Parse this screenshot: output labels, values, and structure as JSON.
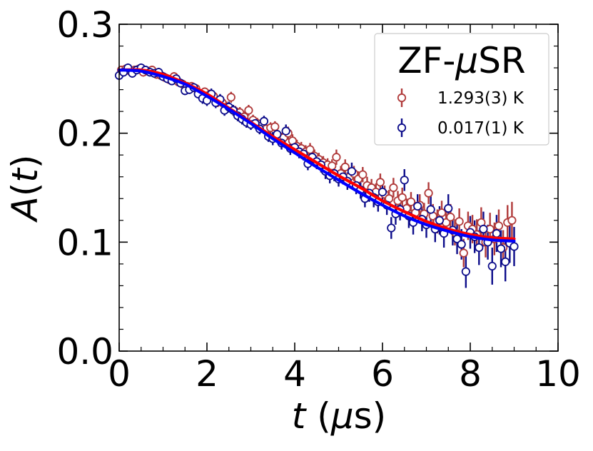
{
  "chart_data": {
    "type": "scatter",
    "xlabel": "t (μs)",
    "ylabel": "A(t)",
    "xlim": [
      0,
      10
    ],
    "ylim": [
      0.0,
      0.3
    ],
    "xticks": [
      "0",
      "2",
      "4",
      "6",
      "8",
      "10"
    ],
    "yticks": [
      "0.0",
      "0.1",
      "0.2",
      "0.3"
    ],
    "legend": {
      "title": "ZF-μSR",
      "position": "top-right",
      "entries": [
        {
          "label": "1.293(3) K",
          "color": "#b03a3a"
        },
        {
          "label": "0.017(1) K",
          "color": "#0c0c8a"
        }
      ]
    },
    "series": [
      {
        "name": "1.293(3) K",
        "marker": "open-circle",
        "color": "#b03a3a",
        "points": [
          [
            0.05,
            0.258,
            0.004
          ],
          [
            0.15,
            0.259,
            0.004
          ],
          [
            0.25,
            0.257,
            0.004
          ],
          [
            0.35,
            0.258,
            0.004
          ],
          [
            0.45,
            0.259,
            0.004
          ],
          [
            0.55,
            0.256,
            0.004
          ],
          [
            0.65,
            0.257,
            0.004
          ],
          [
            0.75,
            0.258,
            0.004
          ],
          [
            0.85,
            0.254,
            0.004
          ],
          [
            0.95,
            0.253,
            0.004
          ],
          [
            1.05,
            0.251,
            0.004
          ],
          [
            1.15,
            0.249,
            0.004
          ],
          [
            1.25,
            0.252,
            0.004
          ],
          [
            1.35,
            0.247,
            0.004
          ],
          [
            1.45,
            0.245,
            0.004
          ],
          [
            1.55,
            0.243,
            0.004
          ],
          [
            1.65,
            0.243,
            0.004
          ],
          [
            1.75,
            0.241,
            0.004
          ],
          [
            1.85,
            0.236,
            0.004
          ],
          [
            1.95,
            0.238,
            0.004
          ],
          [
            2.05,
            0.235,
            0.005
          ],
          [
            2.15,
            0.234,
            0.005
          ],
          [
            2.25,
            0.229,
            0.005
          ],
          [
            2.35,
            0.228,
            0.005
          ],
          [
            2.45,
            0.224,
            0.005
          ],
          [
            2.55,
            0.233,
            0.005
          ],
          [
            2.65,
            0.22,
            0.005
          ],
          [
            2.75,
            0.219,
            0.005
          ],
          [
            2.85,
            0.215,
            0.005
          ],
          [
            2.95,
            0.221,
            0.005
          ],
          [
            3.05,
            0.212,
            0.005
          ],
          [
            3.15,
            0.209,
            0.005
          ],
          [
            3.25,
            0.207,
            0.005
          ],
          [
            3.35,
            0.204,
            0.005
          ],
          [
            3.45,
            0.205,
            0.005
          ],
          [
            3.55,
            0.206,
            0.005
          ],
          [
            3.65,
            0.197,
            0.005
          ],
          [
            3.75,
            0.196,
            0.005
          ],
          [
            3.85,
            0.2,
            0.006
          ],
          [
            3.95,
            0.193,
            0.006
          ],
          [
            4.05,
            0.188,
            0.006
          ],
          [
            4.15,
            0.186,
            0.006
          ],
          [
            4.25,
            0.183,
            0.006
          ],
          [
            4.35,
            0.185,
            0.006
          ],
          [
            4.45,
            0.179,
            0.006
          ],
          [
            4.55,
            0.176,
            0.006
          ],
          [
            4.65,
            0.173,
            0.006
          ],
          [
            4.75,
            0.171,
            0.006
          ],
          [
            4.85,
            0.17,
            0.006
          ],
          [
            4.95,
            0.178,
            0.007
          ],
          [
            5.05,
            0.163,
            0.007
          ],
          [
            5.15,
            0.169,
            0.007
          ],
          [
            5.25,
            0.16,
            0.007
          ],
          [
            5.35,
            0.163,
            0.007
          ],
          [
            5.45,
            0.158,
            0.007
          ],
          [
            5.55,
            0.162,
            0.007
          ],
          [
            5.65,
            0.152,
            0.008
          ],
          [
            5.75,
            0.15,
            0.008
          ],
          [
            5.85,
            0.146,
            0.008
          ],
          [
            5.95,
            0.155,
            0.008
          ],
          [
            6.05,
            0.144,
            0.008
          ],
          [
            6.15,
            0.14,
            0.008
          ],
          [
            6.25,
            0.15,
            0.009
          ],
          [
            6.35,
            0.138,
            0.009
          ],
          [
            6.45,
            0.141,
            0.009
          ],
          [
            6.55,
            0.131,
            0.009
          ],
          [
            6.65,
            0.137,
            0.009
          ],
          [
            6.75,
            0.127,
            0.01
          ],
          [
            6.85,
            0.134,
            0.01
          ],
          [
            6.95,
            0.126,
            0.01
          ],
          [
            7.05,
            0.145,
            0.01
          ],
          [
            7.15,
            0.124,
            0.011
          ],
          [
            7.25,
            0.119,
            0.011
          ],
          [
            7.35,
            0.127,
            0.011
          ],
          [
            7.45,
            0.118,
            0.011
          ],
          [
            7.55,
            0.123,
            0.012
          ],
          [
            7.65,
            0.109,
            0.012
          ],
          [
            7.75,
            0.119,
            0.012
          ],
          [
            7.85,
            0.09,
            0.013
          ],
          [
            7.95,
            0.115,
            0.013
          ],
          [
            8.05,
            0.112,
            0.013
          ],
          [
            8.15,
            0.107,
            0.014
          ],
          [
            8.25,
            0.118,
            0.014
          ],
          [
            8.35,
            0.1,
            0.014
          ],
          [
            8.45,
            0.112,
            0.015
          ],
          [
            8.55,
            0.103,
            0.015
          ],
          [
            8.65,
            0.115,
            0.015
          ],
          [
            8.75,
            0.095,
            0.016
          ],
          [
            8.85,
            0.118,
            0.016
          ],
          [
            8.95,
            0.12,
            0.017
          ]
        ]
      },
      {
        "name": "0.017(1) K",
        "marker": "open-circle",
        "color": "#0c0c8a",
        "points": [
          [
            0.0,
            0.253,
            0.004
          ],
          [
            0.1,
            0.256,
            0.004
          ],
          [
            0.2,
            0.26,
            0.004
          ],
          [
            0.3,
            0.255,
            0.004
          ],
          [
            0.4,
            0.258,
            0.004
          ],
          [
            0.5,
            0.26,
            0.004
          ],
          [
            0.6,
            0.258,
            0.004
          ],
          [
            0.7,
            0.256,
            0.004
          ],
          [
            0.8,
            0.255,
            0.004
          ],
          [
            0.9,
            0.256,
            0.004
          ],
          [
            1.0,
            0.252,
            0.004
          ],
          [
            1.1,
            0.25,
            0.004
          ],
          [
            1.2,
            0.248,
            0.004
          ],
          [
            1.3,
            0.25,
            0.004
          ],
          [
            1.4,
            0.246,
            0.004
          ],
          [
            1.5,
            0.239,
            0.004
          ],
          [
            1.6,
            0.24,
            0.004
          ],
          [
            1.7,
            0.242,
            0.004
          ],
          [
            1.8,
            0.236,
            0.004
          ],
          [
            1.9,
            0.232,
            0.005
          ],
          [
            2.0,
            0.23,
            0.005
          ],
          [
            2.1,
            0.236,
            0.005
          ],
          [
            2.2,
            0.228,
            0.005
          ],
          [
            2.3,
            0.231,
            0.005
          ],
          [
            2.4,
            0.221,
            0.005
          ],
          [
            2.5,
            0.224,
            0.005
          ],
          [
            2.6,
            0.221,
            0.005
          ],
          [
            2.7,
            0.216,
            0.005
          ],
          [
            2.8,
            0.213,
            0.005
          ],
          [
            2.9,
            0.21,
            0.005
          ],
          [
            3.0,
            0.208,
            0.005
          ],
          [
            3.1,
            0.209,
            0.005
          ],
          [
            3.2,
            0.204,
            0.005
          ],
          [
            3.3,
            0.211,
            0.005
          ],
          [
            3.4,
            0.197,
            0.005
          ],
          [
            3.5,
            0.195,
            0.006
          ],
          [
            3.6,
            0.199,
            0.006
          ],
          [
            3.7,
            0.191,
            0.006
          ],
          [
            3.8,
            0.202,
            0.006
          ],
          [
            3.9,
            0.186,
            0.006
          ],
          [
            4.0,
            0.187,
            0.006
          ],
          [
            4.1,
            0.183,
            0.006
          ],
          [
            4.2,
            0.181,
            0.006
          ],
          [
            4.3,
            0.172,
            0.006
          ],
          [
            4.4,
            0.178,
            0.006
          ],
          [
            4.5,
            0.174,
            0.007
          ],
          [
            4.6,
            0.171,
            0.007
          ],
          [
            4.7,
            0.165,
            0.007
          ],
          [
            4.8,
            0.161,
            0.007
          ],
          [
            4.9,
            0.163,
            0.007
          ],
          [
            5.0,
            0.158,
            0.007
          ],
          [
            5.1,
            0.16,
            0.007
          ],
          [
            5.2,
            0.156,
            0.008
          ],
          [
            5.3,
            0.165,
            0.008
          ],
          [
            5.4,
            0.152,
            0.008
          ],
          [
            5.5,
            0.148,
            0.008
          ],
          [
            5.6,
            0.14,
            0.008
          ],
          [
            5.7,
            0.145,
            0.008
          ],
          [
            5.8,
            0.141,
            0.009
          ],
          [
            5.9,
            0.137,
            0.009
          ],
          [
            6.0,
            0.146,
            0.009
          ],
          [
            6.1,
            0.134,
            0.009
          ],
          [
            6.2,
            0.113,
            0.01
          ],
          [
            6.3,
            0.126,
            0.01
          ],
          [
            6.4,
            0.13,
            0.01
          ],
          [
            6.5,
            0.157,
            0.01
          ],
          [
            6.6,
            0.124,
            0.011
          ],
          [
            6.7,
            0.118,
            0.011
          ],
          [
            6.8,
            0.133,
            0.011
          ],
          [
            6.9,
            0.121,
            0.011
          ],
          [
            7.0,
            0.116,
            0.012
          ],
          [
            7.1,
            0.13,
            0.012
          ],
          [
            7.2,
            0.112,
            0.012
          ],
          [
            7.3,
            0.12,
            0.013
          ],
          [
            7.4,
            0.108,
            0.013
          ],
          [
            7.5,
            0.131,
            0.013
          ],
          [
            7.6,
            0.111,
            0.014
          ],
          [
            7.7,
            0.103,
            0.014
          ],
          [
            7.8,
            0.098,
            0.014
          ],
          [
            7.9,
            0.073,
            0.015
          ],
          [
            8.0,
            0.109,
            0.015
          ],
          [
            8.1,
            0.105,
            0.015
          ],
          [
            8.2,
            0.095,
            0.016
          ],
          [
            8.3,
            0.112,
            0.016
          ],
          [
            8.4,
            0.1,
            0.016
          ],
          [
            8.5,
            0.078,
            0.017
          ],
          [
            8.6,
            0.108,
            0.017
          ],
          [
            8.7,
            0.094,
            0.017
          ],
          [
            8.8,
            0.082,
            0.018
          ],
          [
            8.9,
            0.099,
            0.018
          ],
          [
            9.0,
            0.096,
            0.018
          ]
        ]
      }
    ],
    "fit_lines": [
      {
        "name": "fit-1.293K",
        "color": "#ff0000",
        "x": [
          0,
          0.5,
          1,
          1.5,
          2,
          2.5,
          3,
          3.5,
          4,
          4.5,
          5,
          5.5,
          6,
          6.5,
          7,
          7.5,
          8,
          8.5,
          9
        ],
        "y": [
          0.258,
          0.258,
          0.254,
          0.246,
          0.236,
          0.223,
          0.21,
          0.197,
          0.185,
          0.173,
          0.161,
          0.15,
          0.138,
          0.128,
          0.119,
          0.112,
          0.107,
          0.104,
          0.103
        ]
      },
      {
        "name": "fit-0.017K",
        "color": "#0000ff",
        "x": [
          0,
          0.5,
          1,
          1.5,
          2,
          2.5,
          3,
          3.5,
          4,
          4.5,
          5,
          5.5,
          6,
          6.5,
          7,
          7.5,
          8,
          8.5,
          9
        ],
        "y": [
          0.258,
          0.257,
          0.252,
          0.245,
          0.234,
          0.222,
          0.209,
          0.195,
          0.182,
          0.169,
          0.157,
          0.145,
          0.134,
          0.124,
          0.116,
          0.11,
          0.105,
          0.102,
          0.101
        ]
      }
    ]
  }
}
